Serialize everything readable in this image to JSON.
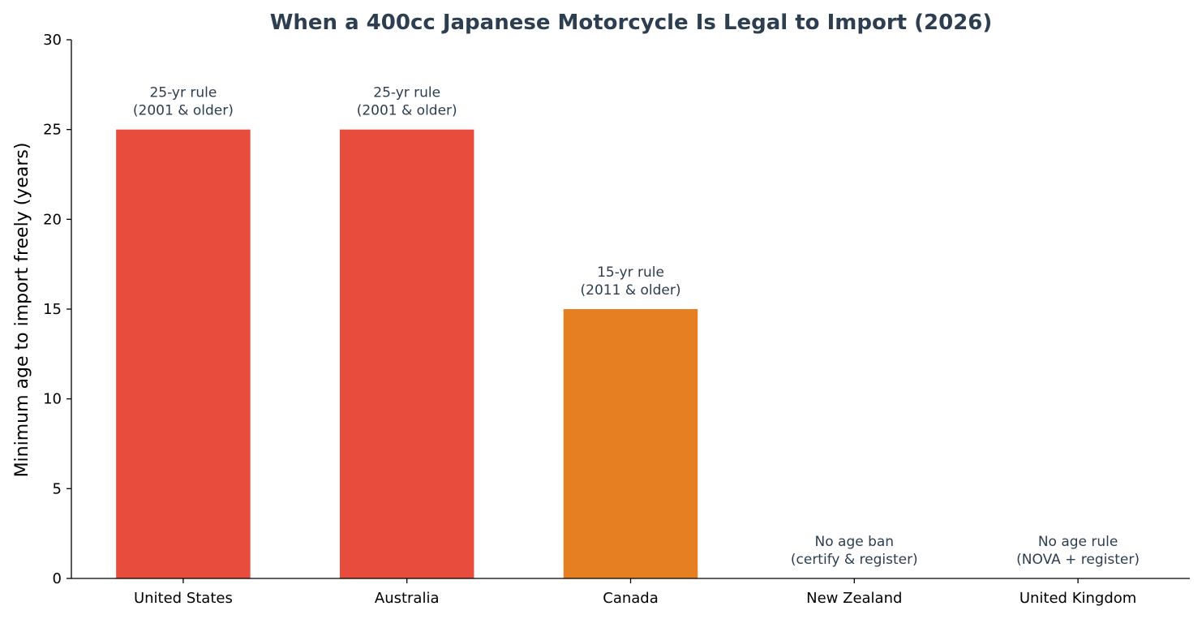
{
  "chart_data": {
    "type": "bar",
    "title": "When a 400cc Japanese Motorcycle Is Legal to Import (2026)",
    "xlabel": "",
    "ylabel": "Minimum age to import freely (years)",
    "categories": [
      "United States",
      "Australia",
      "Canada",
      "New Zealand",
      "United Kingdom"
    ],
    "values": [
      25,
      25,
      15,
      0,
      0
    ],
    "colors": [
      "#e74c3c",
      "#e74c3c",
      "#e67e22",
      "#e74c3c",
      "#e74c3c"
    ],
    "annotations": [
      [
        "25-yr rule",
        "(2001 & older)"
      ],
      [
        "25-yr rule",
        "(2001 & older)"
      ],
      [
        "15-yr rule",
        "(2011 & older)"
      ],
      [
        "No age ban",
        "(certify & register)"
      ],
      [
        "No age rule",
        "(NOVA + register)"
      ]
    ],
    "ylim": [
      0,
      30
    ],
    "yticks": [
      0,
      5,
      10,
      15,
      20,
      25,
      30
    ],
    "grid": false,
    "legend": "none"
  }
}
